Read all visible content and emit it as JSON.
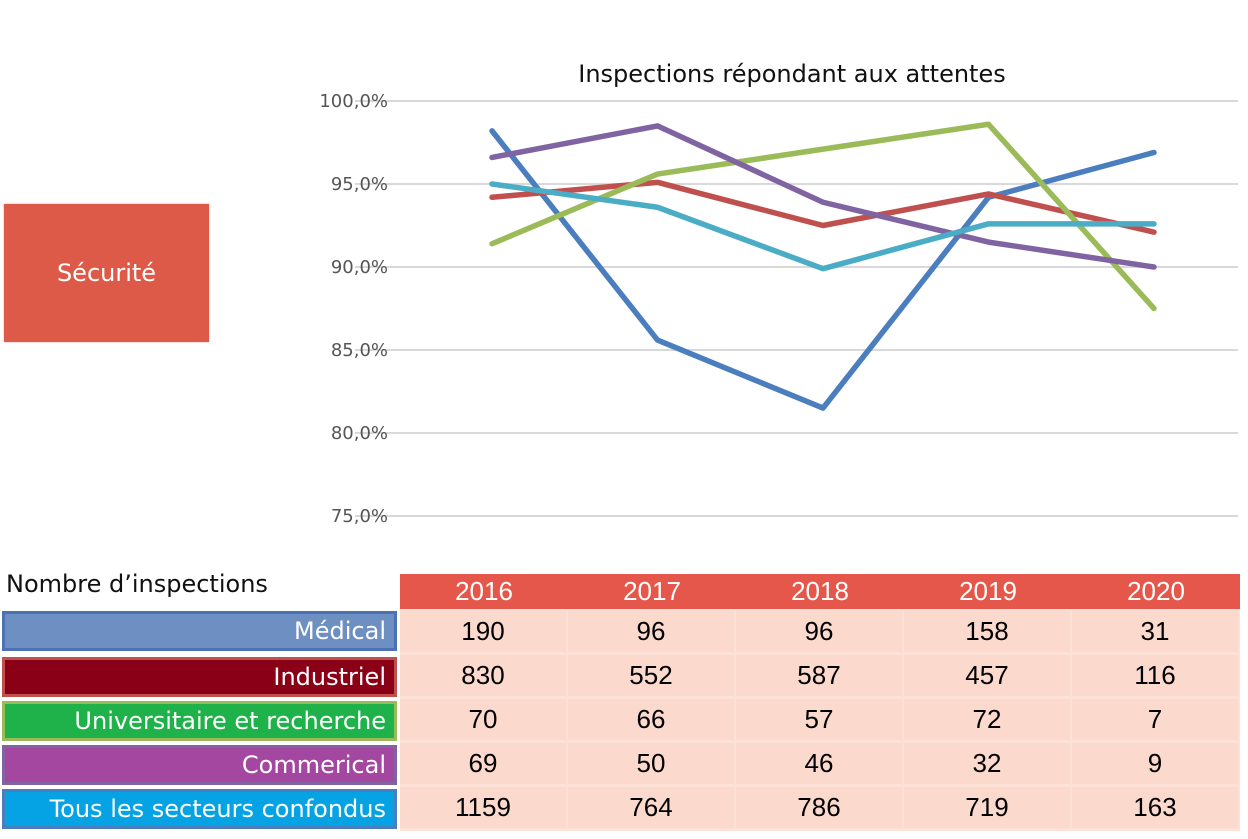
{
  "section_label": "Sécurité",
  "table": {
    "caption": "Nombre d’inspections",
    "years": [
      "2016",
      "2017",
      "2018",
      "2019",
      "2020"
    ],
    "rows": [
      {
        "label": "Médical",
        "values": [
          "190",
          "96",
          "96",
          "158",
          "31"
        ]
      },
      {
        "label": "Industriel",
        "values": [
          "830",
          "552",
          "587",
          "457",
          "116"
        ]
      },
      {
        "label": "Universitaire et recherche",
        "values": [
          "70",
          "66",
          "57",
          "72",
          "7"
        ]
      },
      {
        "label": "Commerical",
        "values": [
          "69",
          "50",
          "46",
          "32",
          "9"
        ]
      },
      {
        "label": "Tous les secteurs confondus",
        "values": [
          "1159",
          "764",
          "786",
          "719",
          "163"
        ]
      }
    ]
  },
  "colors": {
    "header_bg": "#e4574a",
    "section_bg": "#dd5a48",
    "cell_bg": "#fbd9cd",
    "row_medical": "#6e8fc1",
    "row_industriel": "#8a0016",
    "row_universitaire": "#1fb24a",
    "row_commercial": "#a347a1",
    "row_tous": "#05a2e4"
  },
  "chart_data": {
    "type": "line",
    "title": "Inspections répondant aux attentes",
    "xlabel": "",
    "ylabel": "",
    "x": [
      "2016",
      "2017",
      "2018",
      "2019",
      "2020"
    ],
    "ylim": [
      75,
      100
    ],
    "yticks": [
      100,
      95,
      90,
      85,
      80,
      75
    ],
    "ytick_labels": [
      "100,0%",
      "95,0%",
      "90,0%",
      "85,0%",
      "80,0%",
      "75,0%"
    ],
    "grid": true,
    "legend": "none",
    "series": [
      {
        "name": "Médical",
        "color": "#4a7ebf",
        "values": [
          98.2,
          85.6,
          81.5,
          94.2,
          96.9
        ]
      },
      {
        "name": "Industriel",
        "color": "#c0504d",
        "values": [
          94.2,
          95.1,
          92.5,
          94.4,
          92.1
        ]
      },
      {
        "name": "Universitaire et recherche",
        "color": "#9bbb59",
        "values": [
          91.4,
          95.6,
          97.1,
          98.6,
          87.5
        ]
      },
      {
        "name": "Commerical",
        "color": "#8064a2",
        "values": [
          96.6,
          98.5,
          93.9,
          91.5,
          90.0
        ]
      },
      {
        "name": "Tous les secteurs confondus",
        "color": "#4bacc6",
        "values": [
          95.0,
          93.6,
          89.9,
          92.6,
          92.6
        ]
      }
    ]
  }
}
